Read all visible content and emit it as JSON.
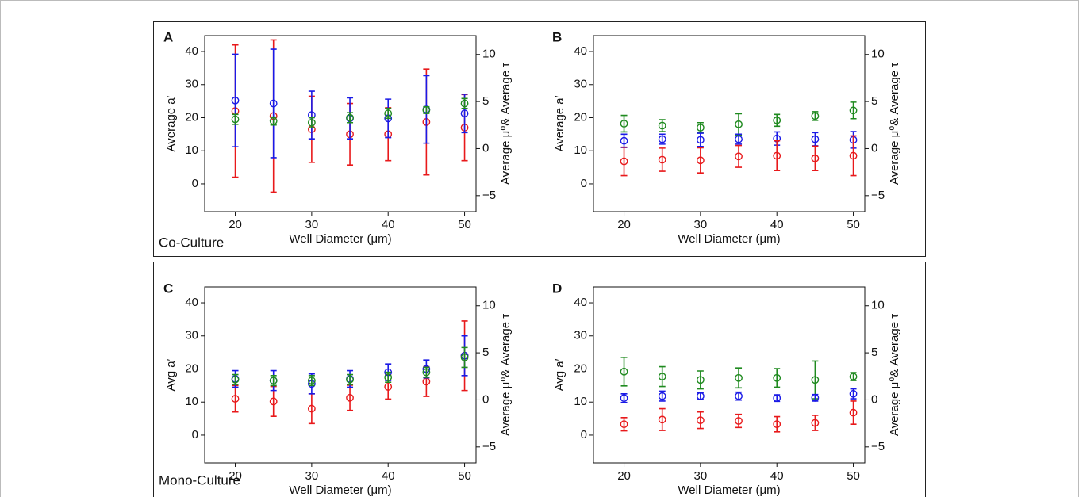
{
  "boxes": [
    {
      "label": "Co-Culture"
    },
    {
      "label": "Mono-Culture"
    }
  ],
  "chart_data": [
    {
      "type": "errorbar",
      "panel_label": "A",
      "xlabel": "Well Diameter (μm)",
      "ylabel": "Average a′",
      "y2label": "Average μ⁰& Average τ",
      "x": [
        20,
        25,
        30,
        35,
        40,
        45,
        50
      ],
      "xlim": [
        16,
        51.5
      ],
      "xticks": [
        20,
        30,
        40,
        50
      ],
      "ylim": [
        -8.4,
        44.8
      ],
      "yticks": [
        0,
        10,
        20,
        30,
        40
      ],
      "y2lim": [
        -6.7,
        12
      ],
      "y2ticks": [
        {
          "value": -5,
          "label": "−5"
        },
        0,
        5,
        10
      ],
      "series": [
        {
          "color": "#e8191b",
          "values": [
            22,
            20.5,
            16.5,
            15,
            15,
            18.7,
            17
          ],
          "errors": [
            20,
            23,
            10,
            9.3,
            8,
            16,
            10
          ]
        },
        {
          "color": "#1a1ae6",
          "values": [
            25.2,
            24.3,
            20.8,
            19.8,
            19.8,
            22.5,
            21.3
          ],
          "errors": [
            14,
            16.4,
            7.2,
            6.2,
            5.8,
            10.2,
            5.8
          ]
        },
        {
          "color": "#1f8a1f",
          "values": [
            19.5,
            19,
            18.5,
            20,
            21.3,
            22.3,
            24.3
          ],
          "errors": [
            1.5,
            1.2,
            1.5,
            1.5,
            1.5,
            1,
            1.5
          ]
        }
      ]
    },
    {
      "type": "errorbar",
      "panel_label": "B",
      "xlabel": "Well Diameter (μm)",
      "ylabel": "Average a′",
      "y2label": "Average μ⁰& Average τ",
      "x": [
        20,
        25,
        30,
        35,
        40,
        45,
        50
      ],
      "xlim": [
        16,
        51.5
      ],
      "xticks": [
        20,
        30,
        40,
        50
      ],
      "ylim": [
        -8.4,
        44.8
      ],
      "yticks": [
        0,
        10,
        20,
        30,
        40
      ],
      "y2lim": [
        -6.7,
        12
      ],
      "y2ticks": [
        {
          "value": -5,
          "label": "−5"
        },
        0,
        5,
        10
      ],
      "series": [
        {
          "color": "#1f8a1f",
          "values": [
            18.2,
            17.6,
            17,
            18,
            19.2,
            20.5,
            22.2
          ],
          "errors": [
            2.5,
            1.8,
            1.5,
            3.2,
            1.8,
            1.3,
            2.5
          ]
        },
        {
          "color": "#1a1ae6",
          "values": [
            13,
            13.5,
            13.3,
            13.5,
            13.7,
            13.5,
            13.3
          ],
          "errors": [
            2,
            1.5,
            2,
            1.5,
            2,
            2,
            2.5
          ]
        },
        {
          "color": "#e8191b",
          "values": [
            6.8,
            7.3,
            7.1,
            8.3,
            8.5,
            7.7,
            8.5
          ],
          "errors": [
            4.3,
            3.5,
            3.8,
            3.3,
            4.5,
            3.7,
            6
          ]
        }
      ]
    },
    {
      "type": "errorbar",
      "panel_label": "C",
      "xlabel": "Well Diameter (μm)",
      "ylabel": "Avg a′",
      "y2label": "Average μ⁰& Average τ",
      "x": [
        20,
        25,
        30,
        35,
        40,
        45,
        50
      ],
      "xlim": [
        16,
        51.5
      ],
      "xticks": [
        20,
        30,
        40,
        50
      ],
      "ylim": [
        -8.4,
        44.8
      ],
      "yticks": [
        0,
        10,
        20,
        30,
        40
      ],
      "y2lim": [
        -6.7,
        12
      ],
      "y2ticks": [
        {
          "value": -5,
          "label": "−5"
        },
        0,
        5,
        10
      ],
      "series": [
        {
          "color": "#e8191b",
          "values": [
            11,
            10.2,
            8,
            11.3,
            14.6,
            16.2,
            24
          ],
          "errors": [
            4,
            4.5,
            4.5,
            3.8,
            3.7,
            4.5,
            10.5
          ]
        },
        {
          "color": "#1a1ae6",
          "values": [
            17,
            16.5,
            15.5,
            17,
            19,
            20,
            24
          ],
          "errors": [
            2.5,
            3,
            3,
            2.5,
            2.5,
            2.7,
            6
          ]
        },
        {
          "color": "#1f8a1f",
          "values": [
            16.8,
            16.5,
            16.5,
            16.8,
            17.5,
            19,
            23.5
          ],
          "errors": [
            1.5,
            1.5,
            1.5,
            1.5,
            1.5,
            1.5,
            3
          ]
        }
      ]
    },
    {
      "type": "errorbar",
      "panel_label": "D",
      "xlabel": "Well Diameter (μm)",
      "ylabel": "Avg a′",
      "y2label": "Average μ⁰& Average τ",
      "x": [
        20,
        25,
        30,
        35,
        40,
        45,
        50
      ],
      "xlim": [
        16,
        51.5
      ],
      "xticks": [
        20,
        30,
        40,
        50
      ],
      "ylim": [
        -8.4,
        44.8
      ],
      "yticks": [
        0,
        10,
        20,
        30,
        40
      ],
      "y2lim": [
        -6.7,
        12
      ],
      "y2ticks": [
        {
          "value": -5,
          "label": "−5"
        },
        0,
        5,
        10
      ],
      "series": [
        {
          "color": "#1f8a1f",
          "values": [
            19.2,
            17.7,
            16.7,
            17.3,
            17.3,
            16.7,
            17.7
          ],
          "errors": [
            4.3,
            3,
            2.7,
            3,
            2.8,
            5.7,
            1.2
          ]
        },
        {
          "color": "#1a1ae6",
          "values": [
            11.2,
            11.8,
            11.8,
            11.8,
            11.2,
            11.3,
            12.5
          ],
          "errors": [
            1.3,
            1.5,
            1,
            1.2,
            1,
            1,
            1.5
          ]
        },
        {
          "color": "#e8191b",
          "values": [
            3.3,
            4.7,
            4.5,
            4.3,
            3.3,
            3.7,
            6.8
          ],
          "errors": [
            2,
            3.3,
            2.5,
            2,
            2.3,
            2.3,
            3.5
          ]
        }
      ]
    }
  ]
}
